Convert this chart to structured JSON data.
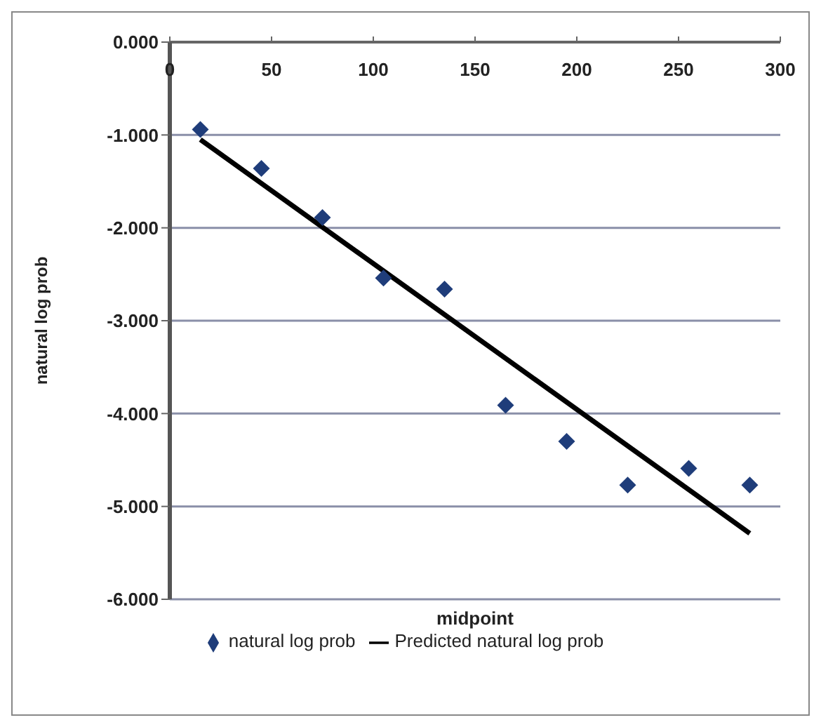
{
  "chart_data": {
    "type": "scatter",
    "xlabel": "midpoint",
    "ylabel": "natural log prob",
    "xlim": [
      0,
      300
    ],
    "xticks": [
      0,
      50,
      100,
      150,
      200,
      250,
      300
    ],
    "ylim": [
      -6,
      0
    ],
    "yticks": [
      {
        "value": 0,
        "label": "0.000"
      },
      {
        "value": -1,
        "label": "-1.000"
      },
      {
        "value": -2,
        "label": "-2.000"
      },
      {
        "value": -3,
        "label": "-3.000"
      },
      {
        "value": -4,
        "label": "-4.000"
      },
      {
        "value": -5,
        "label": "-5.000"
      },
      {
        "value": -6,
        "label": "-6.000"
      }
    ],
    "grid": "y",
    "legend": "bottom",
    "series": [
      {
        "name": "natural log prob",
        "type": "scatter",
        "marker": "diamond",
        "color": "#1f3d7a",
        "x": [
          15,
          45,
          75,
          105,
          135,
          165,
          195,
          225,
          255,
          285
        ],
        "values": [
          -0.94,
          -1.36,
          -1.89,
          -2.54,
          -2.66,
          -3.91,
          -4.3,
          -4.77,
          -4.59,
          -4.77
        ]
      },
      {
        "name": "Predicted natural log prob",
        "type": "line",
        "marker": "none",
        "color": "#000000",
        "x": [
          15,
          285
        ],
        "values": [
          -1.05,
          -5.29
        ]
      }
    ]
  }
}
